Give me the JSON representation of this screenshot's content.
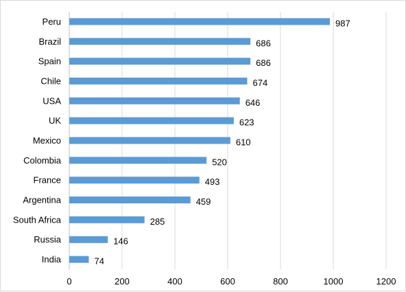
{
  "chart_data": {
    "type": "bar",
    "orientation": "horizontal",
    "categories": [
      "Peru",
      "Brazil",
      "Spain",
      "Chile",
      "USA",
      "UK",
      "Mexico",
      "Colombia",
      "France",
      "Argentina",
      "South Africa",
      "Russia",
      "India"
    ],
    "values": [
      987,
      686,
      686,
      674,
      646,
      623,
      610,
      520,
      493,
      459,
      285,
      146,
      74
    ],
    "xlim": [
      0,
      1200
    ],
    "xticks": [
      0,
      200,
      400,
      600,
      800,
      1000,
      1200
    ],
    "grid": "vertical",
    "data_labels": true,
    "colors": {
      "bar": "#5b9bd5",
      "grid": "#d9d9d9",
      "axis": "#bfbfbf"
    }
  }
}
